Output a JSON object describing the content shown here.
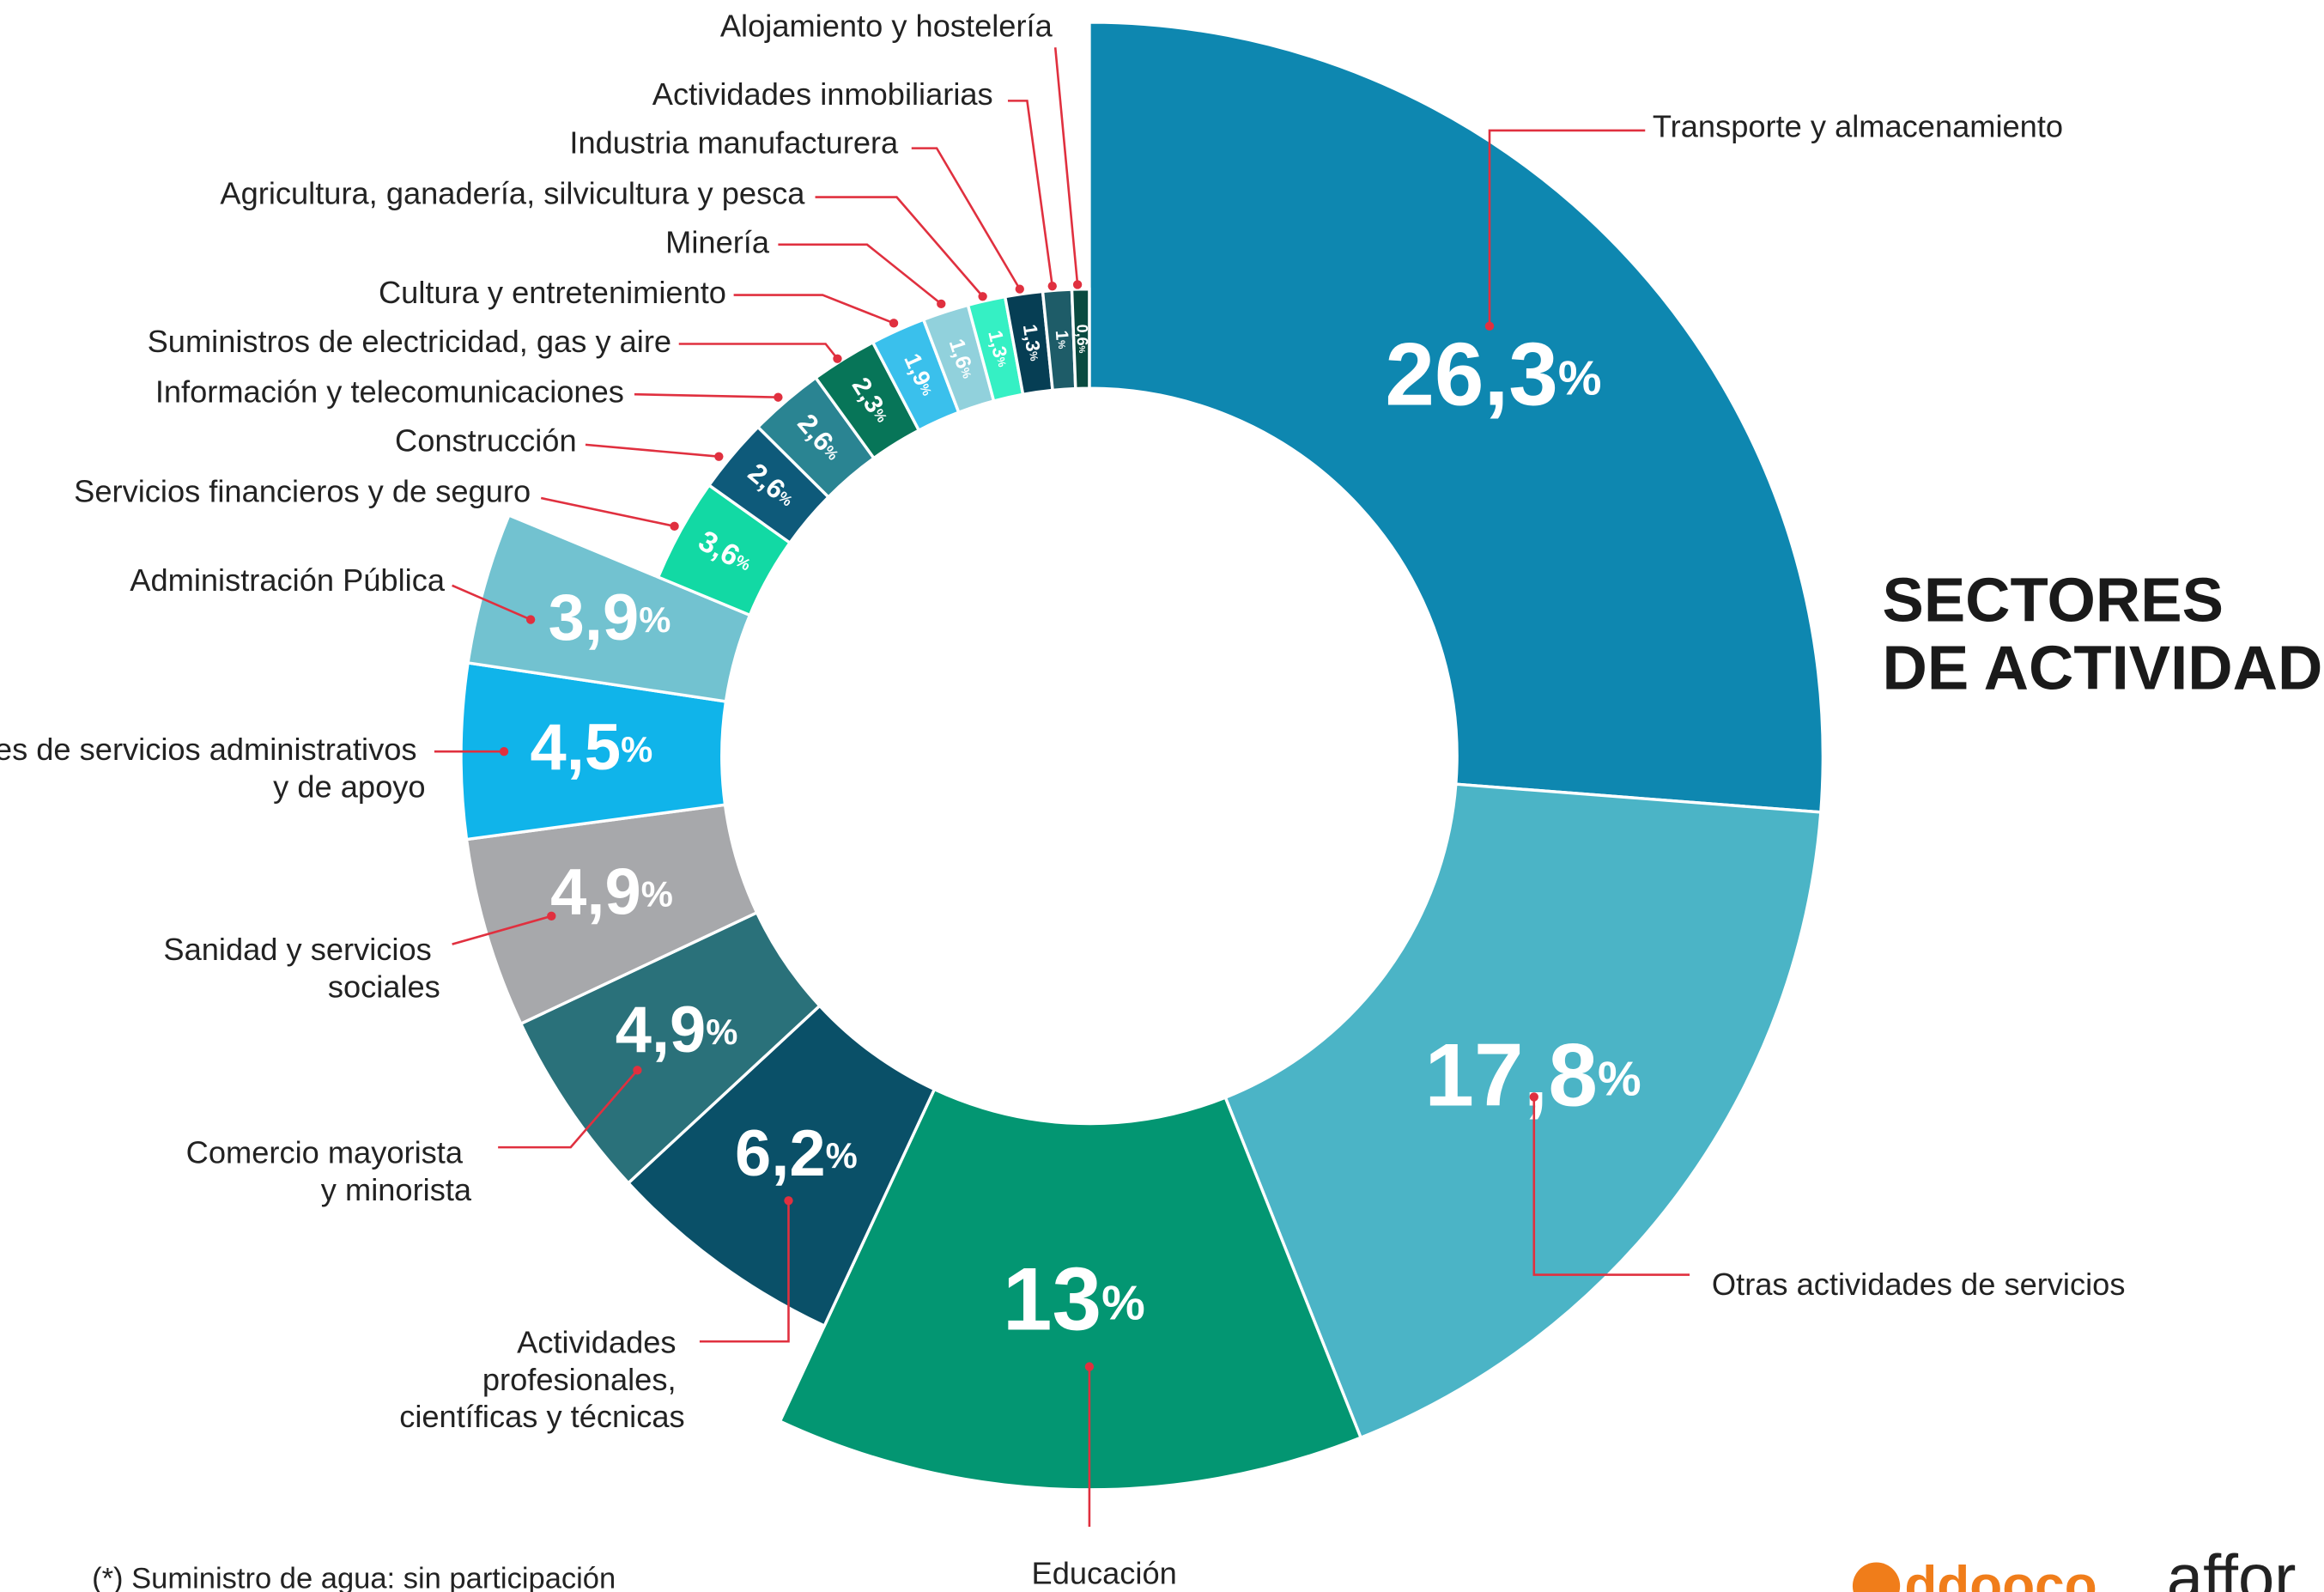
{
  "chart_data": {
    "type": "donut",
    "title": "SECTORES DE ACTIVIDAD",
    "footnote": "(*) Suministro de agua: sin participación",
    "logos": [
      "ddooco",
      "affor"
    ],
    "categories": [
      "Transporte y almacenamiento",
      "Otras actividades de servicios",
      "Educación",
      "Actividades profesionales, científicas y técnicas",
      "Comercio mayorista y minorista",
      "Sanidad y servicios sociales",
      "Actividades de servicios administrativos y de apoyo",
      "Administración Pública",
      "Servicios financieros y de seguro",
      "Construcción",
      "Información y telecomunicaciones",
      "Suministros de electricidad, gas y aire",
      "Cultura y entretenimiento",
      "Minería",
      "Agricultura, ganadería, silvicultura y pesca",
      "Industria manufacturera",
      "Actividades inmobiliarias",
      "Alojamiento y hostelería"
    ],
    "values": [
      26.3,
      17.8,
      13,
      6.2,
      4.9,
      4.9,
      4.5,
      3.9,
      3.6,
      2.6,
      2.6,
      2.3,
      1.9,
      1.6,
      1.3,
      1.3,
      1,
      0.6
    ],
    "value_labels": [
      "26,3%",
      "17,8%",
      "13%",
      "6,2%",
      "4,9%",
      "4,9%",
      "4,5%",
      "3,9%",
      "3,6%",
      "2,6%",
      "2,6%",
      "2,3%",
      "1,9%",
      "1,6%",
      "1,3%",
      "1,3%",
      "1%",
      "0,6%"
    ],
    "colors": [
      "#0e87b0",
      "#4bb4c6",
      "#039672",
      "#0a5068",
      "#2a717a",
      "#a7a8ab",
      "#10b4ea",
      "#72c2d0",
      "#12d9a4",
      "#0e5a7a",
      "#2a8492",
      "#077558",
      "#3ac0ec",
      "#91d1dc",
      "#35f0c4",
      "#063e54",
      "#1e5c68",
      "#0a4a40"
    ]
  }
}
